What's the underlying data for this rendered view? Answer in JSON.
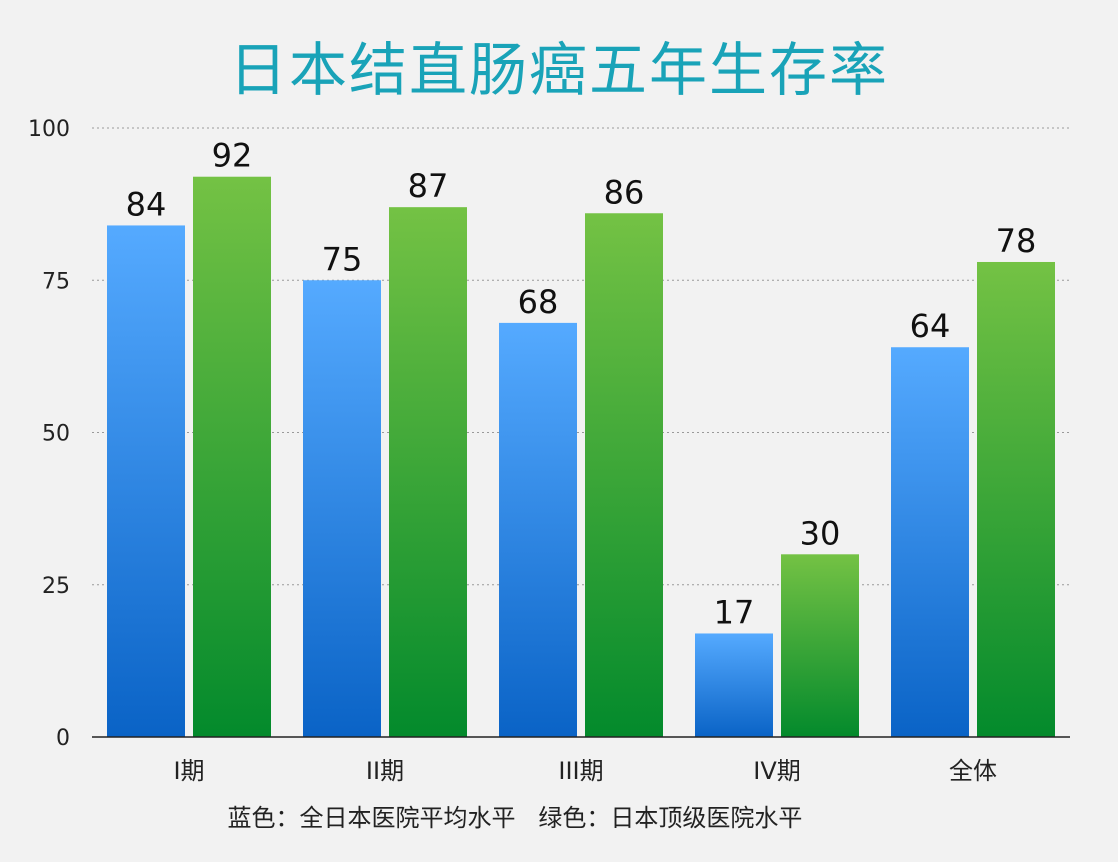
{
  "chart_data": {
    "type": "bar",
    "title": "日本结直肠癌五年生存率",
    "categories": [
      "I期",
      "II期",
      "III期",
      "IV期",
      "全体"
    ],
    "series": [
      {
        "values": [
          84,
          75,
          68,
          17,
          64
        ]
      },
      {
        "values": [
          92,
          87,
          86,
          30,
          78
        ]
      }
    ],
    "ylim": [
      0,
      100
    ],
    "yticks": [
      0,
      25,
      50,
      75,
      100
    ],
    "grid": true,
    "colors": {
      "series_a_top": "#55aaff",
      "series_a_bottom": "#0a63c6",
      "series_b_top": "#74c244",
      "series_b_bottom": "#038a2c",
      "title": "#19a3b8"
    },
    "note": "蓝色：全日本医院平均水平   绿色：日本顶级医院水平"
  }
}
